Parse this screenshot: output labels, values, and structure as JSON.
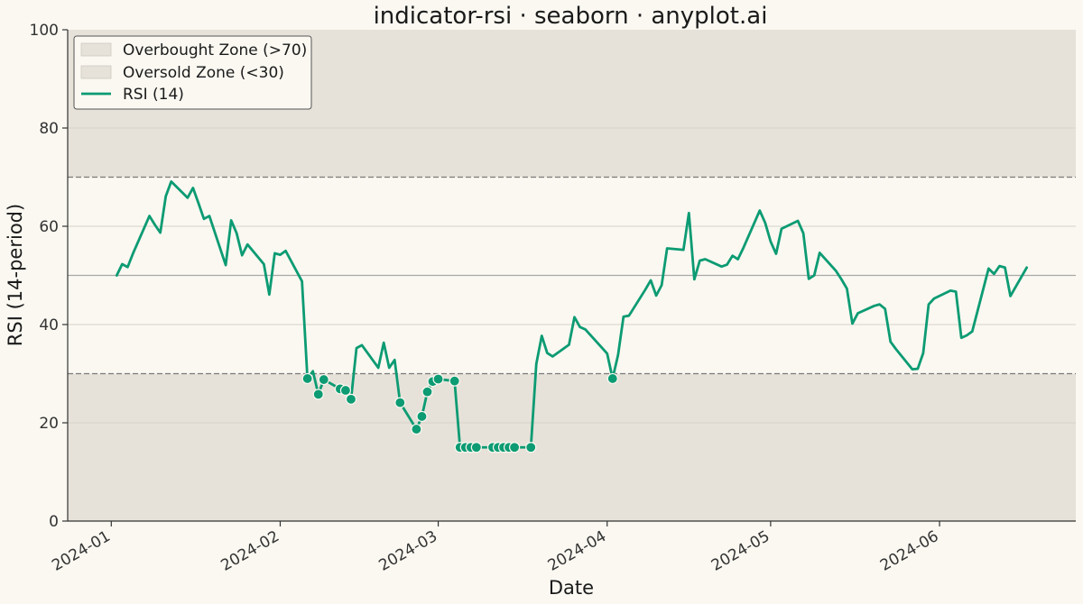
{
  "chart_data": {
    "type": "line",
    "title": "indicator-rsi · seaborn · anyplot.ai",
    "xlabel": "Date",
    "ylabel": "RSI (14-period)",
    "ylim": [
      0,
      100
    ],
    "xlim": [
      "2023-12-24",
      "2024-06-26"
    ],
    "yticks": [
      0,
      20,
      40,
      60,
      80,
      100
    ],
    "xticks": [
      "2024-01-01",
      "2024-02-01",
      "2024-03-01",
      "2024-04-01",
      "2024-05-01",
      "2024-06-01"
    ],
    "xtick_labels": [
      "2024-01",
      "2024-02",
      "2024-03",
      "2024-04",
      "2024-05",
      "2024-06"
    ],
    "grid": "horizontal",
    "legend_position": "top-left",
    "thresholds": {
      "overbought": 70,
      "oversold": 30,
      "midline": 50
    },
    "zones": [
      {
        "name": "Overbought Zone (>70)",
        "from": 70,
        "to": 100,
        "color": "#e6e2d9"
      },
      {
        "name": "Oversold Zone (<30)",
        "from": 0,
        "to": 30,
        "color": "#e6e2d9"
      }
    ],
    "series": [
      {
        "name": "RSI (14)",
        "color": "#0c9b73",
        "x": [
          "2024-01-02",
          "2024-01-03",
          "2024-01-04",
          "2024-01-05",
          "2024-01-08",
          "2024-01-09",
          "2024-01-10",
          "2024-01-11",
          "2024-01-12",
          "2024-01-15",
          "2024-01-16",
          "2024-01-17",
          "2024-01-18",
          "2024-01-19",
          "2024-01-22",
          "2024-01-23",
          "2024-01-24",
          "2024-01-25",
          "2024-01-26",
          "2024-01-29",
          "2024-01-30",
          "2024-01-31",
          "2024-02-01",
          "2024-02-02",
          "2024-02-05",
          "2024-02-06",
          "2024-02-07",
          "2024-02-08",
          "2024-02-09",
          "2024-02-12",
          "2024-02-13",
          "2024-02-14",
          "2024-02-15",
          "2024-02-16",
          "2024-02-19",
          "2024-02-20",
          "2024-02-21",
          "2024-02-22",
          "2024-02-23",
          "2024-02-26",
          "2024-02-27",
          "2024-02-28",
          "2024-02-29",
          "2024-03-01",
          "2024-03-04",
          "2024-03-05",
          "2024-03-06",
          "2024-03-07",
          "2024-03-08",
          "2024-03-11",
          "2024-03-12",
          "2024-03-13",
          "2024-03-14",
          "2024-03-15",
          "2024-03-18",
          "2024-03-19",
          "2024-03-20",
          "2024-03-21",
          "2024-03-22",
          "2024-03-25",
          "2024-03-26",
          "2024-03-27",
          "2024-03-28",
          "2024-04-01",
          "2024-04-02",
          "2024-04-03",
          "2024-04-04",
          "2024-04-05",
          "2024-04-08",
          "2024-04-09",
          "2024-04-10",
          "2024-04-11",
          "2024-04-12",
          "2024-04-15",
          "2024-04-16",
          "2024-04-17",
          "2024-04-18",
          "2024-04-19",
          "2024-04-22",
          "2024-04-23",
          "2024-04-24",
          "2024-04-25",
          "2024-04-26",
          "2024-04-29",
          "2024-04-30",
          "2024-05-01",
          "2024-05-02",
          "2024-05-03",
          "2024-05-06",
          "2024-05-07",
          "2024-05-08",
          "2024-05-09",
          "2024-05-10",
          "2024-05-13",
          "2024-05-14",
          "2024-05-15",
          "2024-05-16",
          "2024-05-17",
          "2024-05-20",
          "2024-05-21",
          "2024-05-22",
          "2024-05-23",
          "2024-05-24",
          "2024-05-27",
          "2024-05-28",
          "2024-05-29",
          "2024-05-30",
          "2024-05-31",
          "2024-06-03",
          "2024-06-04",
          "2024-06-05",
          "2024-06-06",
          "2024-06-07",
          "2024-06-10",
          "2024-06-11",
          "2024-06-12",
          "2024-06-13",
          "2024-06-14",
          "2024-06-17"
        ],
        "values": [
          50.0,
          52.3,
          51.7,
          54.5,
          62.1,
          60.3,
          58.7,
          66.1,
          69.1,
          65.8,
          67.8,
          64.7,
          61.5,
          62.1,
          52.1,
          61.2,
          58.6,
          54.1,
          56.3,
          52.3,
          46.1,
          54.5,
          54.2,
          55.0,
          48.8,
          29.0,
          30.5,
          25.8,
          28.8,
          26.9,
          26.6,
          24.8,
          35.2,
          35.8,
          31.2,
          36.3,
          31.2,
          32.8,
          24.1,
          18.7,
          21.3,
          26.3,
          28.4,
          28.9,
          28.5,
          15.0,
          15.0,
          15.0,
          15.0,
          15.0,
          15.0,
          15.0,
          15.0,
          15.0,
          15.0,
          32.0,
          37.7,
          34.2,
          33.5,
          35.9,
          41.5,
          39.5,
          39.0,
          34.1,
          29.0,
          33.8,
          41.6,
          41.8,
          47.1,
          49.0,
          45.9,
          48.0,
          55.5,
          55.2,
          62.7,
          49.2,
          53.0,
          53.3,
          51.8,
          52.2,
          54.0,
          53.3,
          55.6,
          63.2,
          60.7,
          56.9,
          54.4,
          59.5,
          61.1,
          58.6,
          49.3,
          50.0,
          54.6,
          50.9,
          49.2,
          47.3,
          40.2,
          42.3,
          43.8,
          44.1,
          43.2,
          36.5,
          35.0,
          30.9,
          31.0,
          34.2,
          44.1,
          45.3,
          46.9,
          46.7,
          37.3,
          37.8,
          38.6,
          51.4,
          50.3,
          51.9,
          51.6,
          45.8,
          51.6
        ]
      }
    ]
  }
}
